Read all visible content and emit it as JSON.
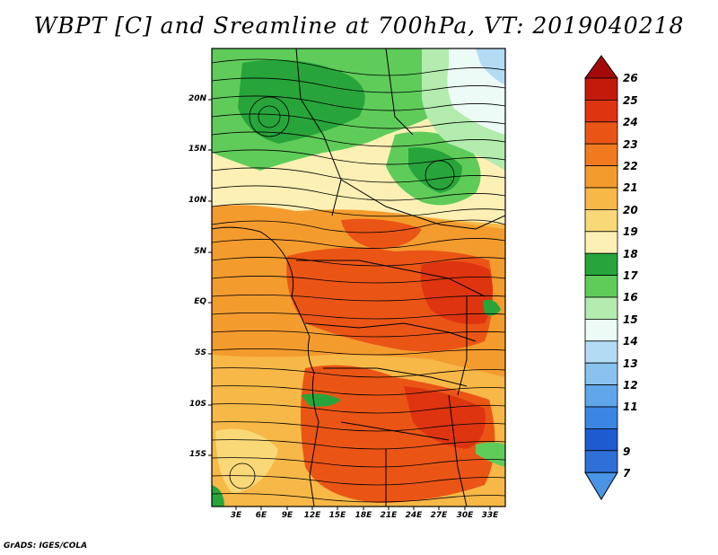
{
  "title": "WBPT [C] and Sreamline at 700hPa, VT: 2019040218",
  "footer": "GrADS: IGES/COLA",
  "map": {
    "lat_labels": [
      "20N",
      "15N",
      "10N",
      "5N",
      "EQ",
      "5S",
      "10S",
      "15S"
    ],
    "lon_labels": [
      "3E",
      "6E",
      "9E",
      "12E",
      "15E",
      "18E",
      "21E",
      "24E",
      "27E",
      "30E",
      "33E"
    ]
  },
  "colorbar": {
    "labels": [
      "26",
      "25",
      "24",
      "23",
      "22",
      "21",
      "20",
      "19",
      "18",
      "17",
      "16",
      "15",
      "14",
      "13",
      "12",
      "11",
      "9",
      "7"
    ],
    "colors": [
      "#a50a0a",
      "#c41a0c",
      "#de3410",
      "#ea5516",
      "#f17a1e",
      "#f49b2e",
      "#f7b847",
      "#f9d878",
      "#fdf0b4",
      "#27a53a",
      "#5fcc5a",
      "#b3ecae",
      "#ecfbf6",
      "#b3dcf4",
      "#8ac2ee",
      "#5fa6ea",
      "#3a86e2",
      "#1e5bd0",
      "#4a94e6"
    ]
  }
}
